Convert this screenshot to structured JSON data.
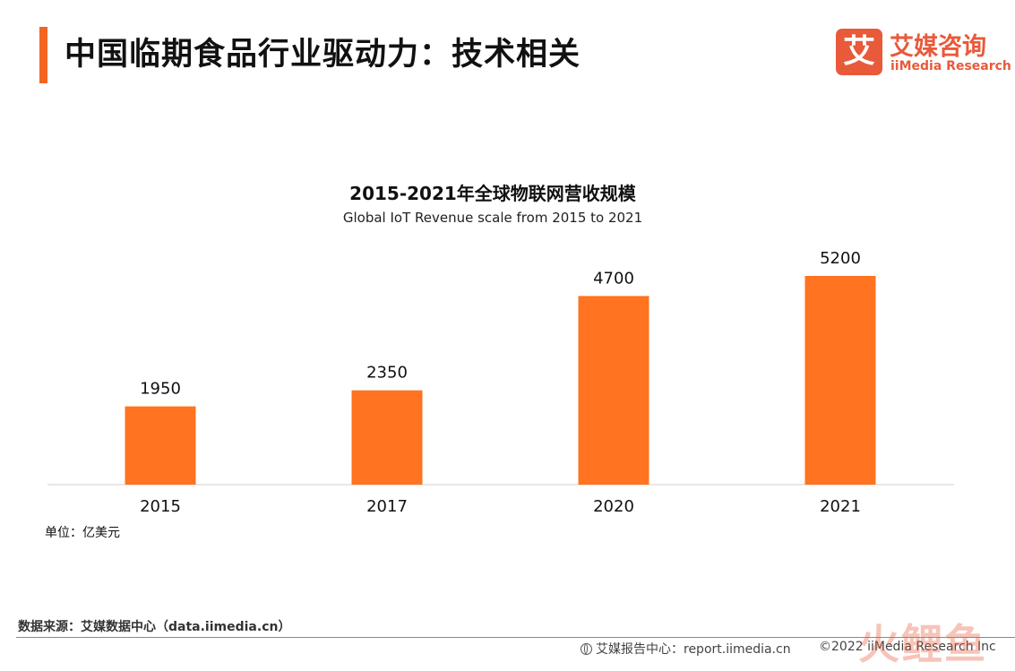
{
  "header": {
    "title": "中国临期食品行业驱动力：技术相关",
    "accent_color": "#f26522"
  },
  "logo": {
    "mark_char": "艾",
    "cn": "艾媒咨询",
    "en": "iiMedia Research",
    "color": "#e85a3a"
  },
  "chart_data": {
    "type": "bar",
    "title": "2015-2021年全球物联网营收规模",
    "subtitle": "Global IoT Revenue scale from 2015 to 2021",
    "categories": [
      "2015",
      "2017",
      "2020",
      "2021"
    ],
    "values": [
      1950,
      2350,
      4700,
      5200
    ],
    "xlabel": "",
    "ylabel": "",
    "ylim": [
      0,
      5600
    ],
    "bar_color": "#ff7321",
    "grid": false,
    "legend": "none",
    "data_labels": true
  },
  "unit_note": "单位：亿美元",
  "footer": {
    "source": "数据来源：艾媒数据中心（data.iimedia.cn）",
    "website": "艾媒报告中心：report.iimedia.cn",
    "copyright": "©2022  iiMedia Research  Inc",
    "watermark": "火鲤鱼"
  }
}
